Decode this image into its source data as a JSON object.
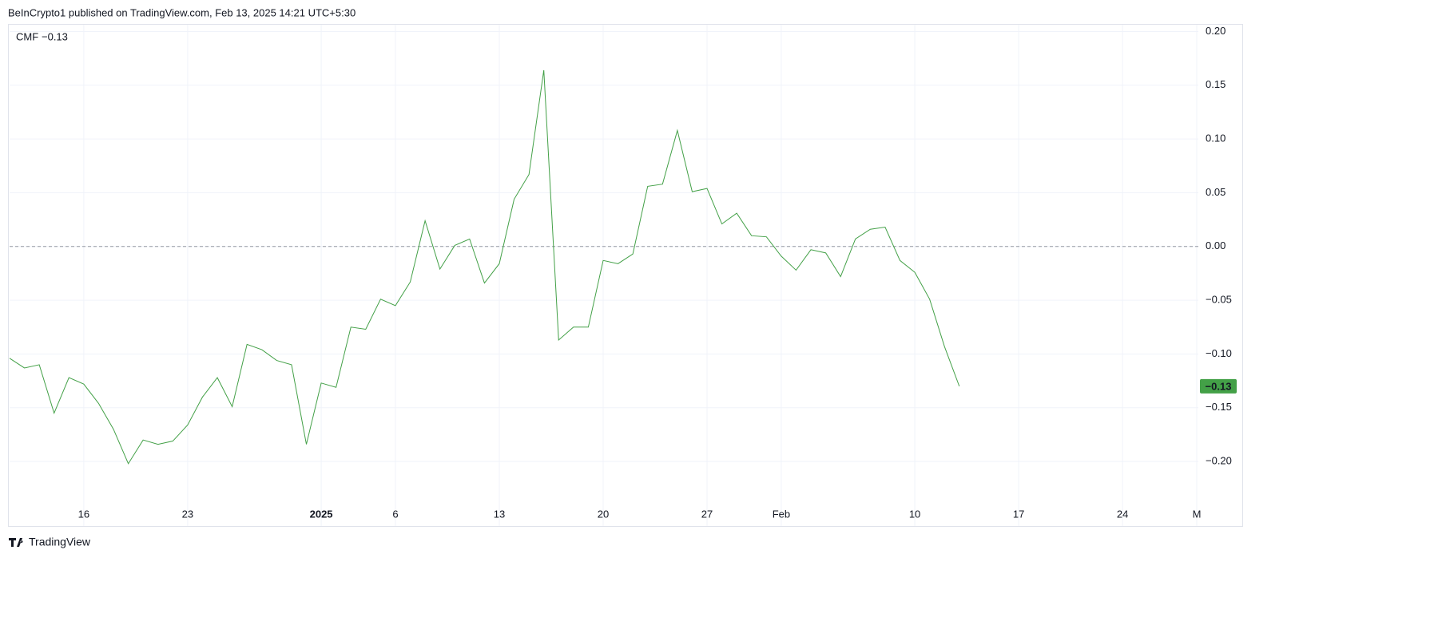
{
  "header": "BeInCrypto1 published on TradingView.com, Feb 13, 2025 14:21 UTC+5:30",
  "footer": "TradingView",
  "chart_data": {
    "type": "line",
    "legend": "CMF",
    "color": "#43a047",
    "categories": [
      null,
      null,
      null,
      null,
      null,
      "16",
      null,
      null,
      null,
      null,
      null,
      null,
      "23",
      null,
      null,
      null,
      null,
      null,
      null,
      null,
      null,
      "2025",
      null,
      null,
      null,
      null,
      "6",
      null,
      null,
      null,
      null,
      null,
      null,
      "13",
      null,
      null,
      null,
      null,
      null,
      null,
      "20",
      null,
      null,
      null,
      null,
      null,
      null,
      "27",
      null,
      null,
      null,
      null,
      "Feb",
      null,
      null,
      null,
      null,
      null,
      null,
      null,
      null,
      "10",
      null,
      null,
      null,
      null,
      null,
      null,
      "17",
      null,
      null,
      null,
      null,
      null,
      null,
      "24",
      null,
      null,
      null,
      null,
      "M"
    ],
    "values": [
      -0.104,
      -0.113,
      -0.11,
      -0.155,
      -0.122,
      -0.128,
      -0.146,
      -0.17,
      -0.202,
      -0.18,
      -0.184,
      -0.181,
      -0.166,
      -0.14,
      -0.122,
      -0.149,
      -0.091,
      -0.096,
      -0.106,
      -0.11,
      -0.184,
      -0.127,
      -0.131,
      -0.075,
      -0.077,
      -0.049,
      -0.055,
      -0.033,
      0.024,
      -0.021,
      0.001,
      0.007,
      -0.034,
      -0.016,
      0.044,
      0.067,
      0.164,
      -0.087,
      -0.075,
      -0.075,
      -0.013,
      -0.016,
      -0.007,
      0.056,
      0.058,
      0.108,
      0.051,
      0.054,
      0.021,
      0.031,
      0.01,
      0.009,
      -0.009,
      -0.022,
      -0.003,
      -0.006,
      -0.028,
      0.007,
      0.016,
      0.018,
      -0.013,
      -0.024,
      -0.049,
      -0.093,
      -0.13,
      null,
      null,
      null,
      null,
      null,
      null,
      null,
      null,
      null,
      null,
      null,
      null,
      null,
      null,
      null,
      null
    ],
    "value_labels": [
      null,
      null,
      null,
      null,
      null,
      null,
      null,
      null,
      null,
      null,
      null,
      null,
      null,
      null,
      null,
      null,
      null,
      null,
      null,
      null,
      null,
      null,
      null,
      null,
      null,
      null,
      null,
      null,
      null,
      null,
      null,
      null,
      null,
      null,
      null,
      null,
      null,
      null,
      null,
      null,
      null,
      null,
      null,
      null,
      null,
      null,
      null,
      null,
      null,
      null,
      null,
      null,
      null,
      null,
      null,
      null,
      null,
      null,
      null,
      null,
      null,
      null,
      null,
      null,
      "−0.13",
      null,
      null,
      null,
      null,
      null,
      null,
      null,
      null,
      null,
      null,
      null,
      null,
      null,
      null,
      null,
      null
    ],
    "ylim": [
      -0.24,
      0.21
    ],
    "yticks": [
      {
        "value": 0.2,
        "label": "0.20"
      },
      {
        "value": 0.15,
        "label": "0.15"
      },
      {
        "value": 0.1,
        "label": "0.10"
      },
      {
        "value": 0.05,
        "label": "0.05"
      },
      {
        "value": 0,
        "label": "0.00"
      },
      {
        "value": -0.05,
        "label": "−0.05"
      },
      {
        "value": -0.1,
        "label": "−0.10"
      },
      {
        "value": -0.15,
        "label": "−0.15"
      },
      {
        "value": -0.2,
        "label": "−0.20"
      }
    ],
    "grid": true,
    "zero_line": true
  }
}
